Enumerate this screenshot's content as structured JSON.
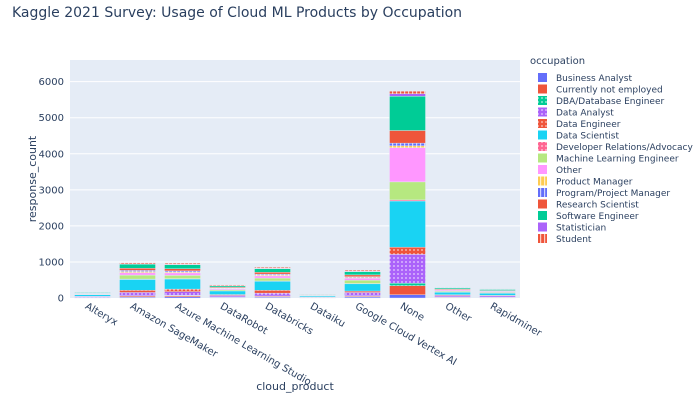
{
  "chart_data": {
    "type": "bar",
    "barmode": "stack",
    "title": "Kaggle 2021 Survey: Usage of Cloud ML Products by Occupation",
    "xlabel": "cloud_product",
    "ylabel": "response_count",
    "ylim": [
      0,
      6600
    ],
    "yticks": [
      0,
      1000,
      2000,
      3000,
      4000,
      5000,
      6000
    ],
    "grid": true,
    "legend_title": "occupation",
    "legend_position": "right",
    "categories": [
      "Alteryx",
      "Amazon SageMaker",
      "Azure Machine Learning Studio",
      "DataRobot",
      "Databricks",
      "Dataiku",
      "Google Cloud Vertex AI",
      "None",
      "Other",
      "Rapidminer"
    ],
    "series": [
      {
        "name": "Business Analyst",
        "color": "#636efa",
        "pattern": "none",
        "values": [
          8,
          25,
          35,
          15,
          25,
          5,
          30,
          90,
          12,
          10
        ]
      },
      {
        "name": "Currently not employed",
        "color": "#ef553b",
        "pattern": "none",
        "values": [
          5,
          30,
          30,
          12,
          20,
          5,
          25,
          250,
          15,
          10
        ]
      },
      {
        "name": "DBA/Database Engineer",
        "color": "#00cc96",
        "pattern": "dots",
        "values": [
          3,
          10,
          12,
          4,
          10,
          2,
          8,
          70,
          4,
          3
        ]
      },
      {
        "name": "Data Analyst",
        "color": "#ab63fa",
        "pattern": "dots",
        "values": [
          25,
          90,
          100,
          40,
          80,
          12,
          90,
          800,
          40,
          35
        ]
      },
      {
        "name": "Data Engineer",
        "color": "#ef553b",
        "pattern": "dots",
        "values": [
          8,
          60,
          70,
          25,
          80,
          8,
          40,
          200,
          20,
          15
        ]
      },
      {
        "name": "Data Scientist",
        "color": "#19d3f3",
        "pattern": "none",
        "values": [
          40,
          300,
          280,
          100,
          250,
          30,
          200,
          1280,
          70,
          60
        ]
      },
      {
        "name": "Developer Relations/Advocacy",
        "color": "#ff6692",
        "pattern": "dots",
        "values": [
          2,
          10,
          10,
          3,
          8,
          1,
          8,
          30,
          3,
          2
        ]
      },
      {
        "name": "Machine Learning Engineer",
        "color": "#b6e880",
        "pattern": "none",
        "values": [
          12,
          110,
          90,
          30,
          80,
          8,
          90,
          500,
          25,
          20
        ]
      },
      {
        "name": "Other",
        "color": "#ff97ff",
        "pattern": "none",
        "values": [
          15,
          70,
          70,
          25,
          60,
          8,
          60,
          950,
          30,
          25
        ]
      },
      {
        "name": "Product Manager",
        "color": "#fecb52",
        "pattern": "lines",
        "values": [
          4,
          30,
          25,
          10,
          25,
          3,
          20,
          50,
          6,
          6
        ]
      },
      {
        "name": "Program/Project Manager",
        "color": "#636efa",
        "pattern": "lines",
        "values": [
          5,
          30,
          30,
          12,
          25,
          3,
          20,
          75,
          8,
          6
        ]
      },
      {
        "name": "Research Scientist",
        "color": "#ef553b",
        "pattern": "none",
        "values": [
          6,
          60,
          60,
          25,
          50,
          6,
          50,
          350,
          20,
          15
        ]
      },
      {
        "name": "Software Engineer",
        "color": "#00cc96",
        "pattern": "none",
        "values": [
          20,
          110,
          110,
          35,
          100,
          12,
          90,
          950,
          35,
          30
        ]
      },
      {
        "name": "Statistician",
        "color": "#ab63fa",
        "pattern": "none",
        "values": [
          3,
          12,
          12,
          5,
          12,
          2,
          10,
          70,
          5,
          4
        ]
      },
      {
        "name": "Student",
        "color": "#ef553b",
        "pattern": "lines",
        "values": [
          9,
          30,
          30,
          20,
          25,
          5,
          30,
          70,
          10,
          9
        ]
      }
    ]
  }
}
